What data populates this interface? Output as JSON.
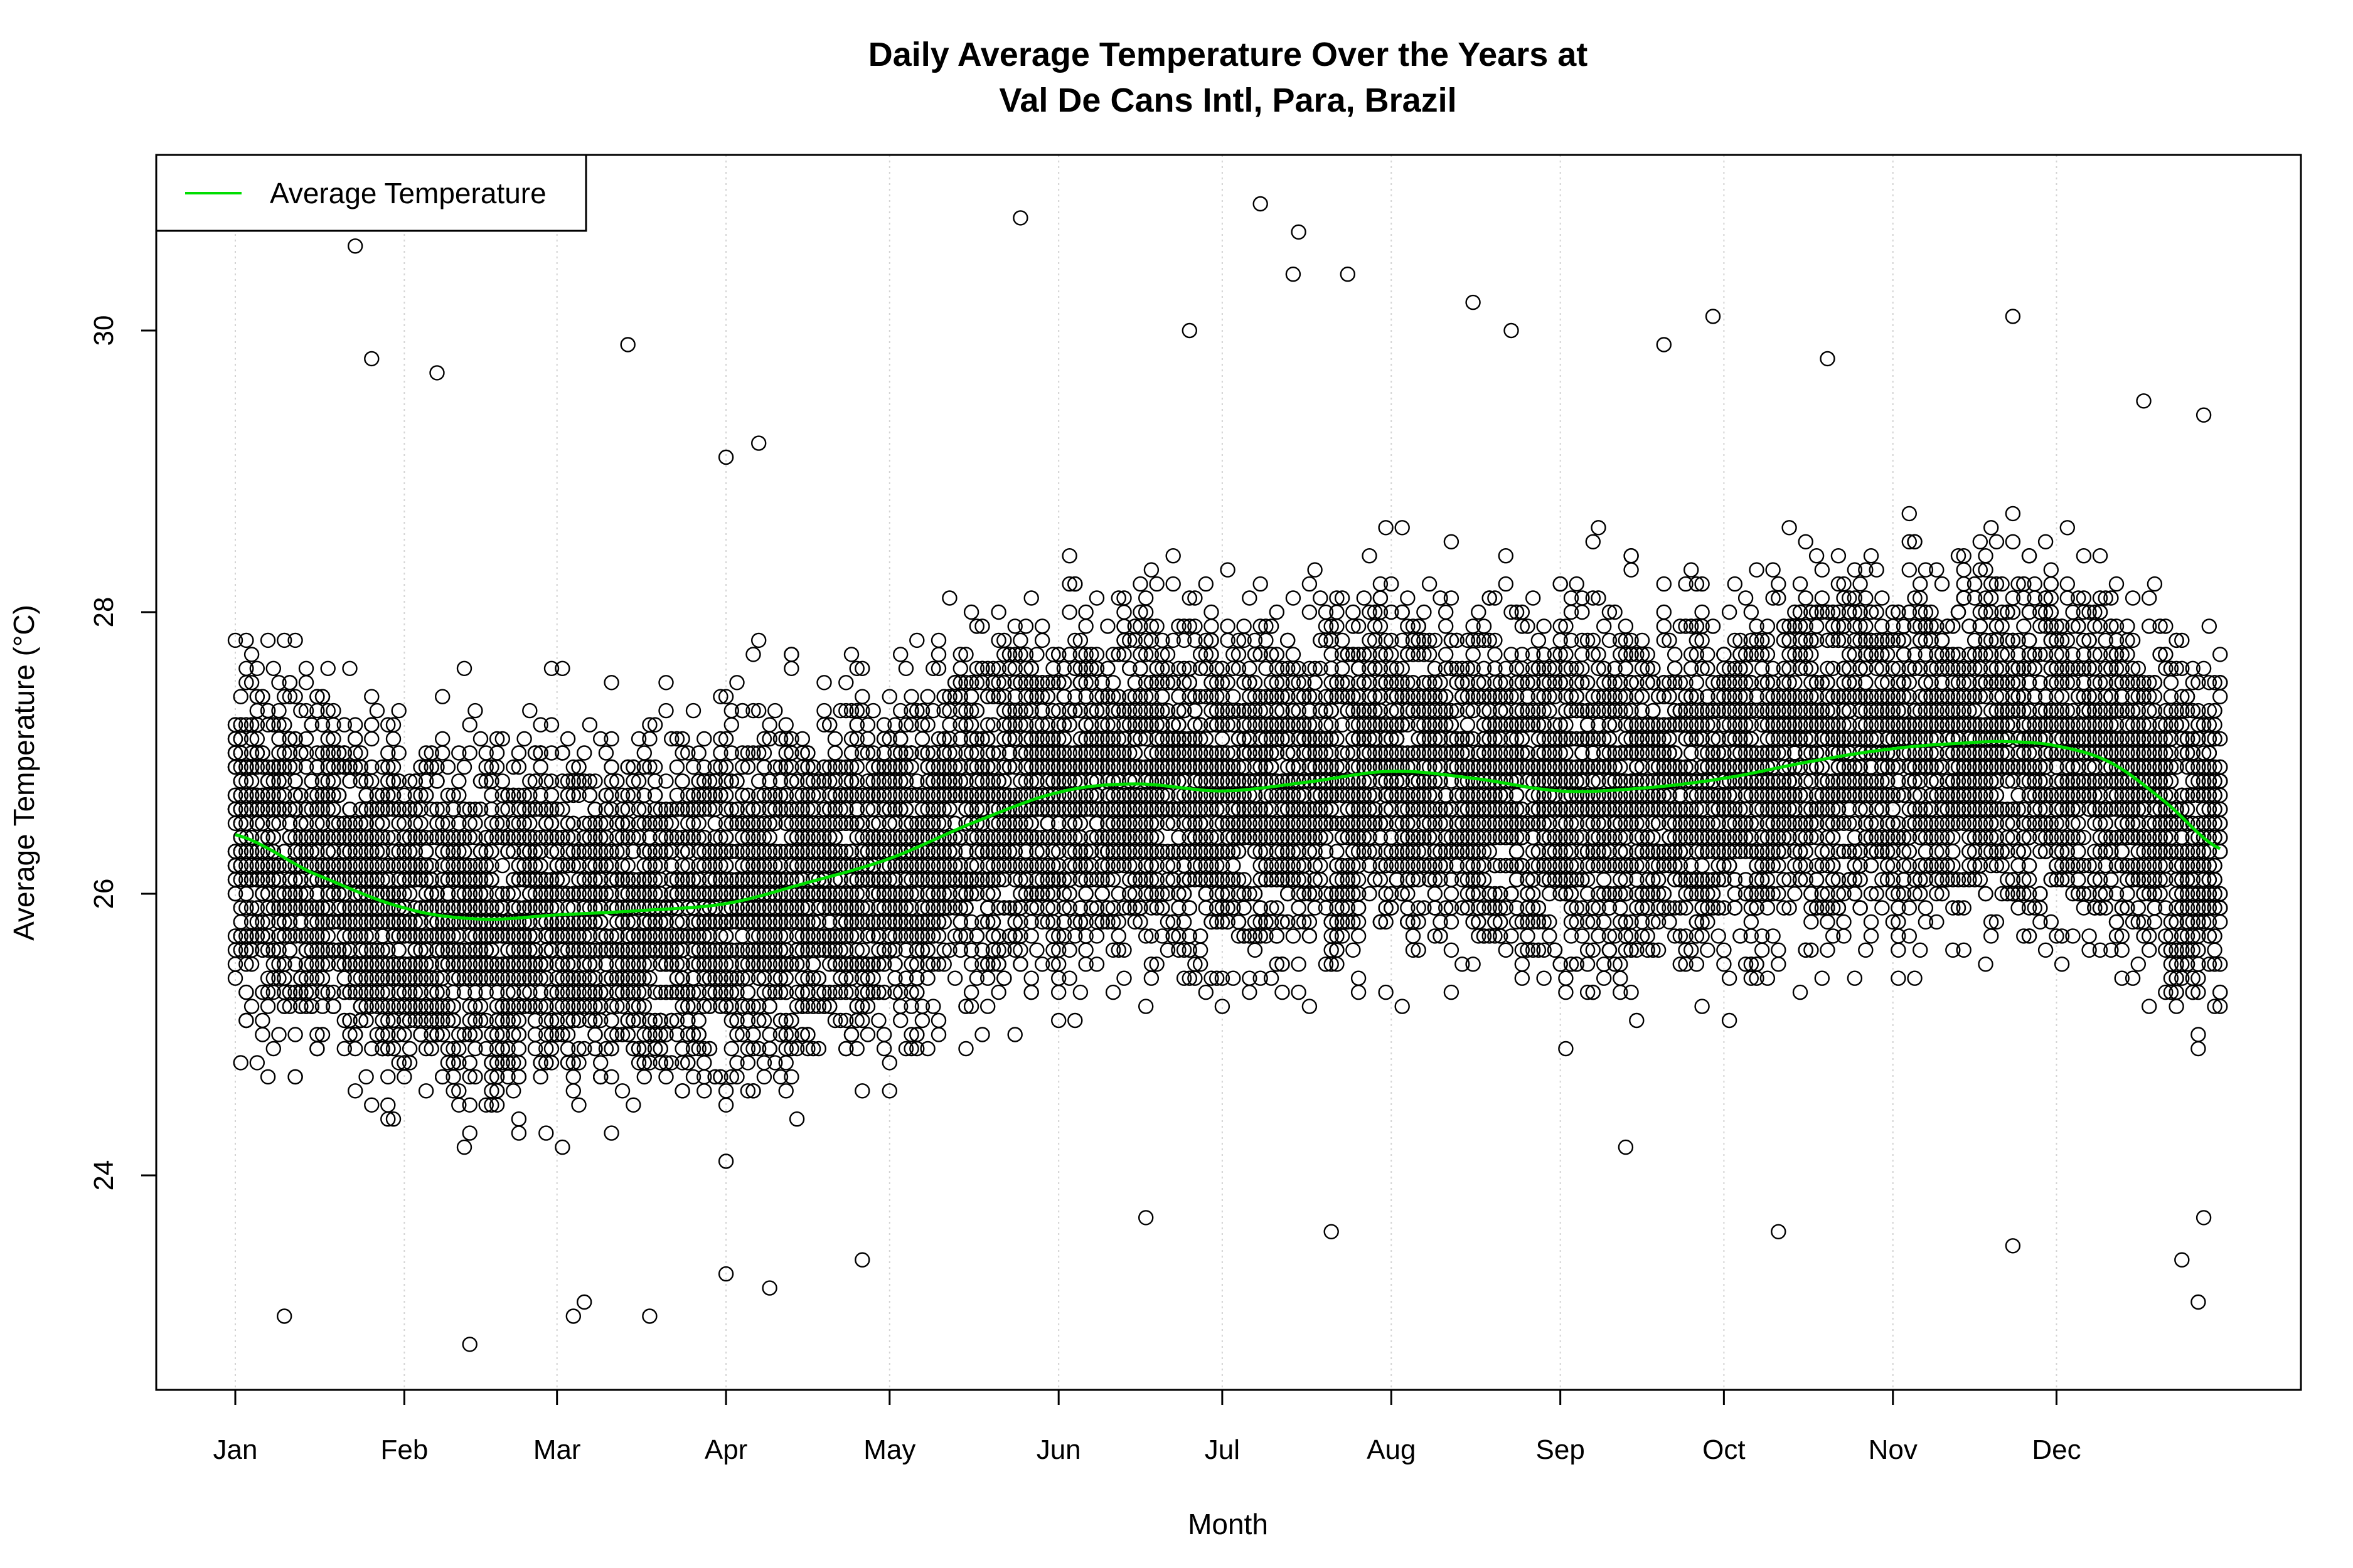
{
  "chart_data": {
    "type": "scatter",
    "title": "Daily Average Temperature Over the Years at",
    "subtitle": "Val De Cans Intl, Para, Brazil",
    "xlabel": "Month",
    "ylabel": "Average Temperature (°C)",
    "x_unit": "day of year",
    "xlim": [
      -10,
      380
    ],
    "ylim": [
      22.5,
      31.2
    ],
    "x_ticks": [
      {
        "label": "Jan",
        "day": 1
      },
      {
        "label": "Feb",
        "day": 32
      },
      {
        "label": "Mar",
        "day": 60
      },
      {
        "label": "Apr",
        "day": 91
      },
      {
        "label": "May",
        "day": 121
      },
      {
        "label": "Jun",
        "day": 152
      },
      {
        "label": "Jul",
        "day": 182
      },
      {
        "label": "Aug",
        "day": 213
      },
      {
        "label": "Sep",
        "day": 244
      },
      {
        "label": "Oct",
        "day": 274
      },
      {
        "label": "Nov",
        "day": 305
      },
      {
        "label": "Dec",
        "day": 335
      }
    ],
    "y_ticks": [
      24,
      26,
      28,
      30
    ],
    "grid": "vertical dotted at month ticks",
    "legend": {
      "position": "top-left",
      "entries": [
        {
          "label": "Average Temperature",
          "color": "#00dd00"
        }
      ]
    },
    "colors": {
      "points": "#000000",
      "line": "#00dd00",
      "grid": "#d3d3d3"
    },
    "series": [
      {
        "name": "Average Temperature",
        "type": "line",
        "points": [
          [
            1,
            26.42
          ],
          [
            15,
            26.15
          ],
          [
            32,
            25.9
          ],
          [
            46,
            25.82
          ],
          [
            60,
            25.85
          ],
          [
            75,
            25.88
          ],
          [
            91,
            25.93
          ],
          [
            106,
            26.08
          ],
          [
            121,
            26.25
          ],
          [
            136,
            26.5
          ],
          [
            152,
            26.72
          ],
          [
            166,
            26.78
          ],
          [
            182,
            26.73
          ],
          [
            197,
            26.79
          ],
          [
            213,
            26.87
          ],
          [
            228,
            26.82
          ],
          [
            244,
            26.73
          ],
          [
            259,
            26.75
          ],
          [
            274,
            26.82
          ],
          [
            290,
            26.94
          ],
          [
            305,
            27.03
          ],
          [
            318,
            27.07
          ],
          [
            326,
            27.08
          ],
          [
            335,
            27.05
          ],
          [
            345,
            26.93
          ],
          [
            355,
            26.65
          ],
          [
            365,
            26.32
          ]
        ]
      },
      {
        "type": "scatter",
        "band": "dense daily observations across years, mostly 24.5–28.5 °C",
        "notable_points": [
          [
            23,
            30.6
          ],
          [
            145,
            30.8
          ],
          [
            189,
            30.9
          ],
          [
            196,
            30.7
          ],
          [
            195,
            30.4
          ],
          [
            205,
            30.4
          ],
          [
            228,
            30.2
          ],
          [
            272,
            30.1
          ],
          [
            327,
            30.1
          ],
          [
            44,
            22.8
          ],
          [
            10,
            23.0
          ],
          [
            63,
            23.0
          ],
          [
            65,
            23.1
          ],
          [
            77,
            23.0
          ],
          [
            361,
            23.1
          ],
          [
            73,
            29.9
          ],
          [
            26,
            29.8
          ],
          [
            38,
            29.7
          ],
          [
            176,
            30.0
          ],
          [
            235,
            30.0
          ],
          [
            263,
            29.9
          ],
          [
            293,
            29.8
          ],
          [
            362,
            29.4
          ],
          [
            91,
            29.1
          ],
          [
            97,
            29.2
          ],
          [
            351,
            29.5
          ],
          [
            168,
            23.7
          ],
          [
            202,
            23.6
          ],
          [
            284,
            23.6
          ],
          [
            327,
            23.5
          ],
          [
            256,
            24.2
          ],
          [
            91,
            23.3
          ],
          [
            99,
            23.2
          ],
          [
            116,
            23.4
          ],
          [
            358,
            23.4
          ],
          [
            362,
            23.7
          ]
        ]
      }
    ]
  }
}
